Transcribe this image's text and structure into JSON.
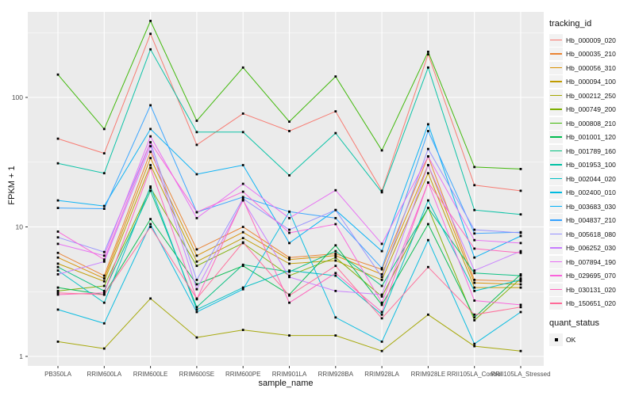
{
  "chart_data": {
    "type": "line",
    "xlabel": "sample_name",
    "ylabel": "FPKM + 1",
    "y_scale": "log10",
    "y_ticks": [
      1,
      10,
      100
    ],
    "y_minor": [
      3.162,
      31.62,
      316.2
    ],
    "ylim": [
      1,
      460
    ],
    "grid": "major-and-minor-white-on-grey",
    "legend_position": "right",
    "legend_title": "tracking_id",
    "legend2_title": "quant_status",
    "legend2_items": [
      "OK"
    ],
    "marker": "small-black-square",
    "categories": [
      "PB350LA",
      "RRIM600LA",
      "RRIM600LE",
      "RRIM600SE",
      "RRIM600PE",
      "RRIM901LA",
      "RRIM928BA",
      "RRIM928LA",
      "RRIM928LE",
      "RRII105LA_Control",
      "RRII105LA_Stressed"
    ],
    "series": [
      {
        "name": "Hb_000009_020",
        "color": "#F8766D",
        "values": [
          48,
          37,
          310,
          43,
          75,
          55,
          78,
          19,
          215,
          21,
          19
        ]
      },
      {
        "name": "Hb_000035_210",
        "color": "#EA8331",
        "values": [
          6.3,
          4.2,
          38,
          6.7,
          10,
          5.8,
          6.2,
          4.7,
          35,
          3.9,
          3.8
        ]
      },
      {
        "name": "Hb_000056_310",
        "color": "#D89000",
        "values": [
          5.8,
          4.0,
          34,
          6.0,
          9.1,
          5.6,
          6.0,
          4.3,
          30,
          3.7,
          3.6
        ]
      },
      {
        "name": "Hb_000094_100",
        "color": "#C09B00",
        "values": [
          5.2,
          3.8,
          30,
          5.4,
          8.2,
          5.2,
          5.5,
          3.9,
          26,
          3.4,
          3.4
        ]
      },
      {
        "name": "Hb_000212_250",
        "color": "#A3A500",
        "values": [
          1.3,
          1.15,
          2.8,
          1.4,
          1.6,
          1.45,
          1.45,
          1.1,
          2.1,
          1.2,
          1.1
        ]
      },
      {
        "name": "Hb_000749_200",
        "color": "#7CAE00",
        "values": [
          3.2,
          3.5,
          20,
          5.0,
          7.5,
          4.2,
          5.8,
          2.9,
          14,
          1.9,
          4.0
        ]
      },
      {
        "name": "Hb_000808_210",
        "color": "#39B600",
        "values": [
          150,
          57,
          390,
          66,
          170,
          65,
          145,
          39,
          225,
          29,
          28
        ]
      },
      {
        "name": "Hb_001001_120",
        "color": "#00BB4E",
        "values": [
          3.4,
          3.0,
          11.5,
          3.6,
          5.0,
          3.0,
          7.2,
          2.5,
          10.5,
          2.0,
          4.3
        ]
      },
      {
        "name": "Hb_001789_160",
        "color": "#00BF7D",
        "values": [
          4.9,
          3.2,
          19,
          2.4,
          5.1,
          4.5,
          6.5,
          3.5,
          14,
          4.4,
          4.2
        ]
      },
      {
        "name": "Hb_001953_100",
        "color": "#00C1A3",
        "values": [
          31,
          26,
          235,
          54,
          54,
          25,
          53,
          18.5,
          170,
          13.5,
          12.5
        ]
      },
      {
        "name": "Hb_002044_020",
        "color": "#00BFC4",
        "values": [
          4.6,
          2.6,
          20.5,
          2.3,
          3.4,
          4.6,
          4.2,
          2.1,
          16,
          3.2,
          3.9
        ]
      },
      {
        "name": "Hb_002400_010",
        "color": "#00BAE0",
        "values": [
          2.3,
          1.8,
          10.5,
          2.2,
          3.3,
          13.1,
          2.0,
          1.3,
          7.9,
          1.25,
          2.2
        ]
      },
      {
        "name": "Hb_003683_030",
        "color": "#00B0F6",
        "values": [
          16,
          14.5,
          57,
          25.5,
          30,
          7.5,
          13.5,
          6.5,
          62,
          5.8,
          8.5
        ]
      },
      {
        "name": "Hb_004837_210",
        "color": "#35A2FF",
        "values": [
          14,
          13.8,
          87,
          13,
          17,
          13.1,
          11.7,
          4.8,
          55,
          8.9,
          9.1
        ]
      },
      {
        "name": "Hb_005618_080",
        "color": "#9590FF",
        "values": [
          8.3,
          6.4,
          45,
          3.9,
          16.5,
          9.5,
          13.5,
          4.1,
          40,
          9.5,
          9.0
        ]
      },
      {
        "name": "Hb_006252_030",
        "color": "#C77CFF",
        "values": [
          4.3,
          5.4,
          42,
          3.3,
          16,
          4.1,
          3.2,
          3.0,
          30,
          4.6,
          6.5
        ]
      },
      {
        "name": "Hb_007894_190",
        "color": "#E76BF3",
        "values": [
          7.4,
          6.0,
          50,
          11.7,
          21.5,
          11.7,
          19.2,
          7.4,
          35,
          7.9,
          7.5
        ]
      },
      {
        "name": "Hb_029695_070",
        "color": "#FA62DB",
        "values": [
          9.2,
          5.6,
          45,
          13,
          18.7,
          9.0,
          10.5,
          2.6,
          22,
          2.7,
          2.5
        ]
      },
      {
        "name": "Hb_030131_020",
        "color": "#FF62BC",
        "values": [
          3.0,
          3.1,
          28.5,
          2.76,
          16.2,
          2.6,
          4.4,
          2.2,
          22,
          6.8,
          6.3
        ]
      },
      {
        "name": "Hb_150651_020",
        "color": "#FF6A98",
        "values": [
          3.1,
          3.0,
          10,
          2.8,
          7.6,
          2.95,
          5.0,
          1.97,
          4.9,
          2.1,
          2.4
        ]
      }
    ]
  },
  "colors": {
    "panel_bg": "#EBEBEB",
    "grid": "#FFFFFF",
    "axis_text": "#4D4D4D",
    "title_text": "#111111",
    "marker": "#000000",
    "legend_key_bg": "#F2F2F2"
  }
}
